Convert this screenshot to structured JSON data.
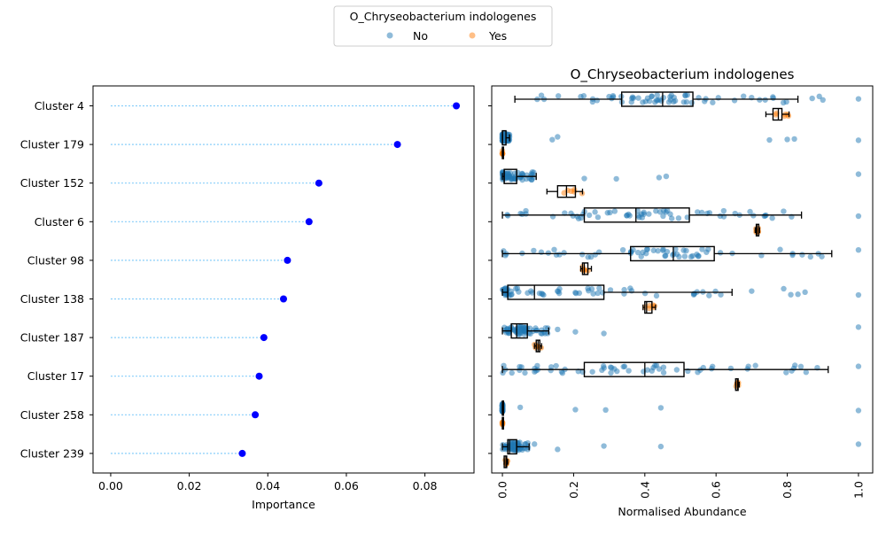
{
  "legend": {
    "title": "O_Chryseobacterium indologenes",
    "items": [
      {
        "label": "No",
        "color": "#1f77b4"
      },
      {
        "label": "Yes",
        "color": "#ff7f0e"
      }
    ]
  },
  "chart_data": [
    {
      "type": "scatter",
      "subtype": "lollipop",
      "title": "",
      "xlabel": "Importance",
      "ylabel": "",
      "xlim": [
        -0.0045,
        0.0925
      ],
      "xticks": [
        "0.00",
        "0.02",
        "0.04",
        "0.06",
        "0.08"
      ],
      "xtick_values": [
        0,
        0.02,
        0.04,
        0.06,
        0.08
      ],
      "categories": [
        "Cluster 4",
        "Cluster 179",
        "Cluster 152",
        "Cluster 6",
        "Cluster 98",
        "Cluster 138",
        "Cluster 187",
        "Cluster 17",
        "Cluster 258",
        "Cluster 239"
      ],
      "values": [
        0.088,
        0.073,
        0.053,
        0.0505,
        0.045,
        0.044,
        0.039,
        0.0378,
        0.0368,
        0.0335
      ],
      "marker_color": "#0000ff",
      "line_color": "#87cefa"
    },
    {
      "type": "box",
      "title": "O_Chryseobacterium indologenes",
      "xlabel": "Normalised Abundance",
      "ylabel": "",
      "xlim": [
        -0.03,
        1.04
      ],
      "xticks": [
        "0.0",
        "0.2",
        "0.4",
        "0.6",
        "0.8",
        "1.0"
      ],
      "xtick_values": [
        0,
        0.2,
        0.4,
        0.6,
        0.8,
        1.0
      ],
      "categories": [
        "Cluster 4",
        "Cluster 179",
        "Cluster 152",
        "Cluster 6",
        "Cluster 98",
        "Cluster 138",
        "Cluster 187",
        "Cluster 17",
        "Cluster 258",
        "Cluster 239"
      ],
      "series": [
        {
          "name": "No",
          "color": "#1f77b4",
          "boxes": [
            {
              "whislo": 0.035,
              "q1": 0.335,
              "med": 0.45,
              "q3": 0.535,
              "whishi": 0.83,
              "outliers": [
                0.87,
                0.89,
                0.9,
                1.0
              ]
            },
            {
              "whislo": 0.0,
              "q1": 0.0,
              "med": 0.0,
              "q3": 0.01,
              "whishi": 0.02,
              "outliers": [
                0.14,
                0.155,
                0.75,
                0.8,
                0.82,
                1.0
              ]
            },
            {
              "whislo": 0.0,
              "q1": 0.005,
              "med": 0.005,
              "q3": 0.04,
              "whishi": 0.095,
              "outliers": [
                0.23,
                0.32,
                0.44,
                0.46,
                1.0
              ]
            },
            {
              "whislo": 0.0,
              "q1": 0.23,
              "med": 0.375,
              "q3": 0.525,
              "whishi": 0.84,
              "outliers": [
                1.0
              ]
            },
            {
              "whislo": 0.0,
              "q1": 0.36,
              "med": 0.48,
              "q3": 0.595,
              "whishi": 0.925,
              "outliers": [
                1.0
              ]
            },
            {
              "whislo": 0.0,
              "q1": 0.015,
              "med": 0.09,
              "q3": 0.285,
              "whishi": 0.645,
              "outliers": [
                0.7,
                0.79,
                0.81,
                0.83,
                0.85,
                1.0
              ]
            },
            {
              "whislo": 0.0,
              "q1": 0.025,
              "med": 0.04,
              "q3": 0.07,
              "whishi": 0.13,
              "outliers": [
                0.155,
                0.205,
                0.285,
                1.0
              ]
            },
            {
              "whislo": 0.0,
              "q1": 0.23,
              "med": 0.4,
              "q3": 0.51,
              "whishi": 0.915,
              "outliers": [
                1.0
              ]
            },
            {
              "whislo": 0.0,
              "q1": 0.0,
              "med": 0.0,
              "q3": 0.0,
              "whishi": 0.0,
              "outliers": [
                0.05,
                0.205,
                0.29,
                0.445,
                1.0
              ]
            },
            {
              "whislo": 0.0,
              "q1": 0.015,
              "med": 0.02,
              "q3": 0.04,
              "whishi": 0.075,
              "outliers": [
                0.09,
                0.155,
                0.285,
                0.445,
                1.0
              ]
            }
          ]
        },
        {
          "name": "Yes",
          "color": "#ff7f0e",
          "boxes": [
            {
              "whislo": 0.74,
              "q1": 0.76,
              "med": 0.775,
              "q3": 0.785,
              "whishi": 0.805,
              "outliers": []
            },
            {
              "whislo": 0.0,
              "q1": 0.0,
              "med": 0.0,
              "q3": 0.0,
              "whishi": 0.0,
              "outliers": []
            },
            {
              "whislo": 0.125,
              "q1": 0.155,
              "med": 0.18,
              "q3": 0.205,
              "whishi": 0.225,
              "outliers": []
            },
            {
              "whislo": 0.71,
              "q1": 0.713,
              "med": 0.715,
              "q3": 0.72,
              "whishi": 0.722,
              "outliers": []
            },
            {
              "whislo": 0.22,
              "q1": 0.225,
              "med": 0.23,
              "q3": 0.24,
              "whishi": 0.25,
              "outliers": []
            },
            {
              "whislo": 0.395,
              "q1": 0.4,
              "med": 0.405,
              "q3": 0.42,
              "whishi": 0.43,
              "outliers": []
            },
            {
              "whislo": 0.09,
              "q1": 0.095,
              "med": 0.1,
              "q3": 0.105,
              "whishi": 0.11,
              "outliers": []
            },
            {
              "whislo": 0.655,
              "q1": 0.655,
              "med": 0.66,
              "q3": 0.662,
              "whishi": 0.665,
              "outliers": []
            },
            {
              "whislo": 0.0,
              "q1": 0.0,
              "med": 0.0,
              "q3": 0.0,
              "whishi": 0.0,
              "outliers": []
            },
            {
              "whislo": 0.005,
              "q1": 0.005,
              "med": 0.01,
              "q3": 0.012,
              "whishi": 0.015,
              "outliers": []
            }
          ]
        }
      ]
    }
  ]
}
